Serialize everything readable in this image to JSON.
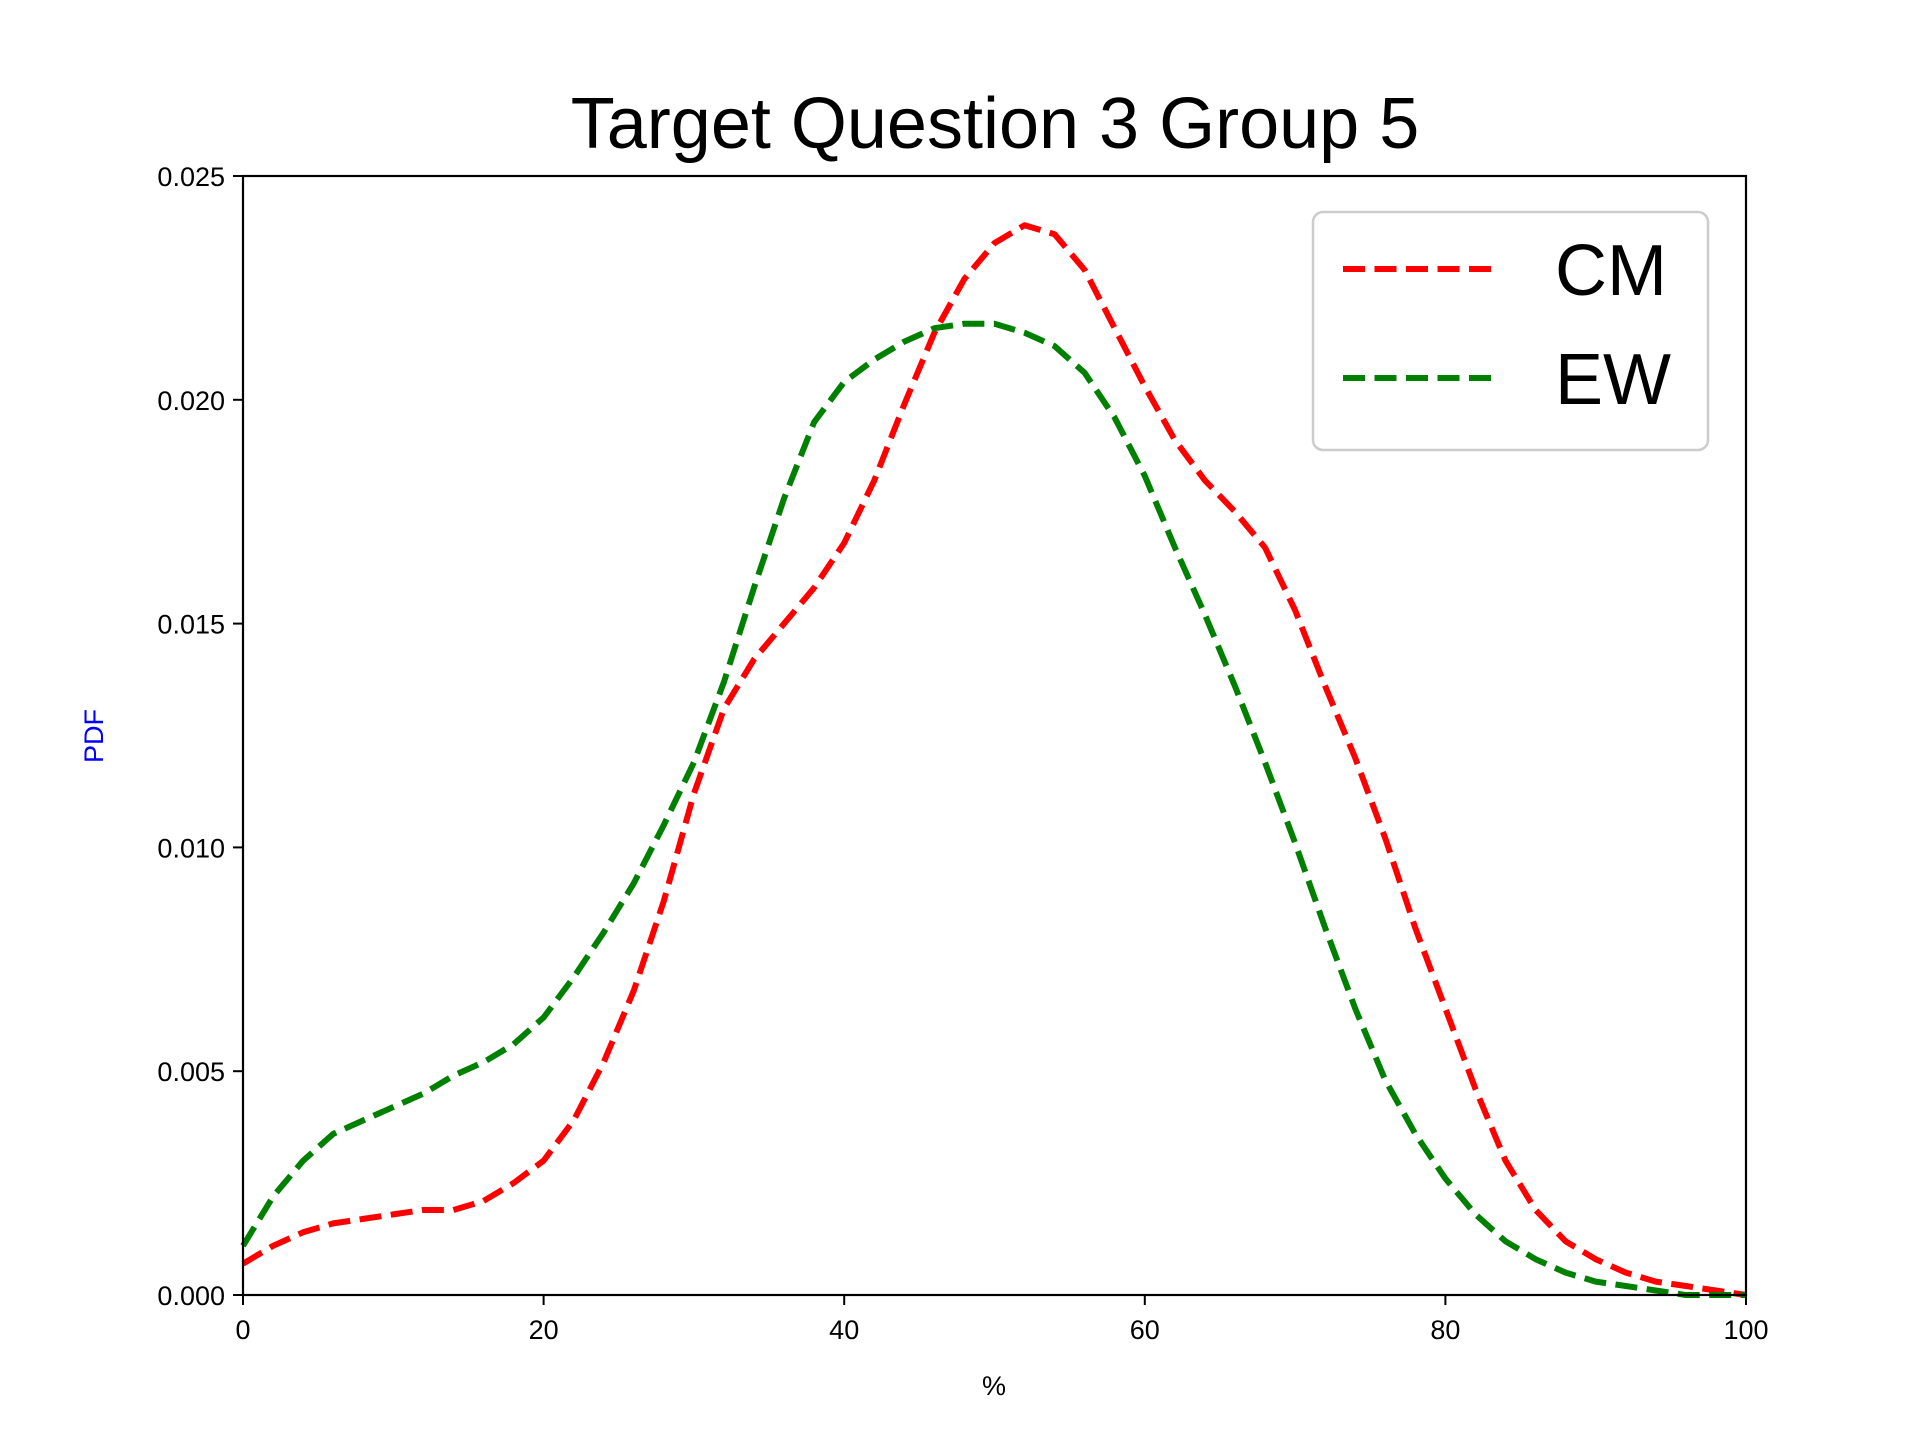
{
  "chart_data": {
    "type": "line",
    "title": "Target Question 3 Group 5",
    "xlabel": "%",
    "ylabel": "PDF",
    "ylabel_color": "#0000ff",
    "xlim": [
      0,
      100
    ],
    "ylim": [
      0,
      0.025
    ],
    "x_ticks": [
      0,
      20,
      40,
      60,
      80,
      100
    ],
    "x_tick_labels": [
      "0",
      "20",
      "40",
      "60",
      "80",
      "100"
    ],
    "y_ticks": [
      0,
      0.005,
      0.01,
      0.015,
      0.02,
      0.025
    ],
    "y_tick_labels": [
      "0.000",
      "0.005",
      "0.010",
      "0.015",
      "0.020",
      "0.025"
    ],
    "grid": false,
    "legend_position": "top-right",
    "series": [
      {
        "name": "CM",
        "color": "#ff0000",
        "line_style": "dashed",
        "x": [
          0,
          2,
          4,
          6,
          8,
          10,
          12,
          14,
          16,
          18,
          20,
          22,
          24,
          26,
          28,
          30,
          32,
          34,
          36,
          38,
          40,
          42,
          44,
          46,
          48,
          50,
          52,
          54,
          56,
          58,
          60,
          62,
          64,
          66,
          68,
          70,
          72,
          74,
          76,
          78,
          80,
          82,
          84,
          86,
          88,
          90,
          92,
          94,
          96,
          98,
          100
        ],
        "y": [
          0.0007,
          0.0011,
          0.0014,
          0.0016,
          0.0017,
          0.0018,
          0.0019,
          0.0019,
          0.0021,
          0.0025,
          0.003,
          0.0039,
          0.0052,
          0.0068,
          0.0088,
          0.0112,
          0.0131,
          0.0142,
          0.015,
          0.0158,
          0.0168,
          0.0182,
          0.0199,
          0.0215,
          0.0227,
          0.0235,
          0.0239,
          0.0237,
          0.0229,
          0.0216,
          0.0203,
          0.0191,
          0.0182,
          0.0175,
          0.0167,
          0.0153,
          0.0136,
          0.012,
          0.0102,
          0.0082,
          0.0064,
          0.0046,
          0.003,
          0.0019,
          0.0012,
          0.0008,
          0.0005,
          0.0003,
          0.0002,
          0.0001,
          0.0
        ]
      },
      {
        "name": "EW",
        "color": "#008000",
        "line_style": "dashed",
        "x": [
          0,
          2,
          4,
          6,
          8,
          10,
          12,
          14,
          16,
          18,
          20,
          22,
          24,
          26,
          28,
          30,
          32,
          34,
          36,
          38,
          40,
          42,
          44,
          46,
          48,
          50,
          52,
          54,
          56,
          58,
          60,
          62,
          64,
          66,
          68,
          70,
          72,
          74,
          76,
          78,
          80,
          82,
          84,
          86,
          88,
          90,
          92,
          94,
          96,
          98,
          100
        ],
        "y": [
          0.0011,
          0.0022,
          0.003,
          0.0036,
          0.0039,
          0.0042,
          0.0045,
          0.0049,
          0.0052,
          0.0056,
          0.0062,
          0.0071,
          0.0081,
          0.0092,
          0.0105,
          0.0119,
          0.0137,
          0.0158,
          0.0178,
          0.0195,
          0.0204,
          0.0209,
          0.0213,
          0.0216,
          0.0217,
          0.0217,
          0.0215,
          0.0212,
          0.0206,
          0.0196,
          0.0183,
          0.0167,
          0.0152,
          0.0136,
          0.0119,
          0.0101,
          0.0082,
          0.0064,
          0.0048,
          0.0036,
          0.0026,
          0.0018,
          0.0012,
          0.0008,
          0.0005,
          0.0003,
          0.0002,
          0.0001,
          0.0,
          0.0,
          0.0
        ]
      }
    ]
  }
}
